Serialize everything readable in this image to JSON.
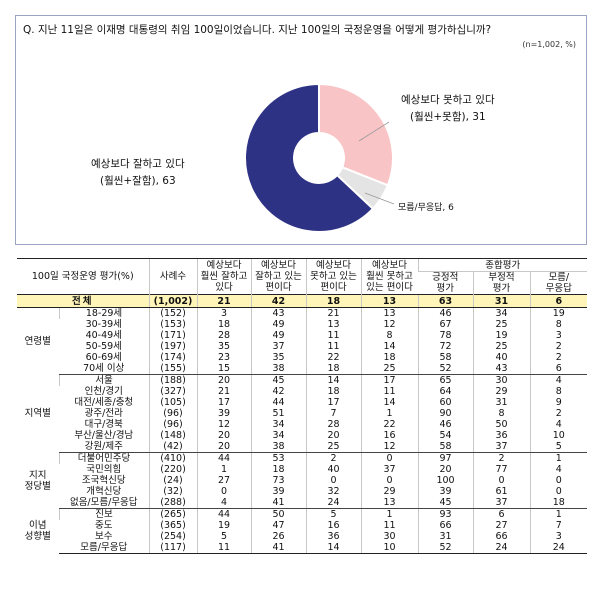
{
  "question": "Q. 지난 11일은 이재명 대통령의 취임 100일이었습니다. 지난 100일의 국정운영을 어떻게 평가하십니까?",
  "note": "(n=1,002, %)",
  "chart_data": {
    "type": "pie",
    "title": "",
    "slices": [
      {
        "label_line1": "예상보다 잘하고 있다",
        "label_line2": "(훨씬+잘함),",
        "value": 63,
        "color": "#2e3284"
      },
      {
        "label_line1": "예상보다 못하고 있다",
        "label_line2": "(훨씬+못함),",
        "value": 31,
        "color": "#f9c4c6"
      },
      {
        "label_line1": "모름/무응답,",
        "label_line2": "",
        "value": 6,
        "color": "#e4e4e4"
      }
    ]
  },
  "table": {
    "header": {
      "corner": "100일 국정운영 평가(%)",
      "sample": "사례수",
      "c1": [
        "예상보다",
        "훨씬 잘하고",
        "있다"
      ],
      "c2": [
        "예상보다",
        "잘하고 있는",
        "편이다"
      ],
      "c3": [
        "예상보다",
        "못하고 있는",
        "편이다"
      ],
      "c4": [
        "예상보다",
        "훨씬 못하고",
        "있는 편이다"
      ],
      "summary": "종합평가",
      "s1": [
        "긍정적",
        "평가"
      ],
      "s2": [
        "부정적",
        "평가"
      ],
      "s3": [
        "모름/",
        "무응답"
      ]
    },
    "total": {
      "label": "전체",
      "n": "(1,002)",
      "values": [
        "21",
        "42",
        "18",
        "13",
        "63",
        "31",
        "6"
      ]
    },
    "groups": [
      {
        "name": [
          "연령별"
        ],
        "rows": [
          {
            "cat": "18-29세",
            "n": "(152)",
            "values": [
              "3",
              "43",
              "21",
              "13",
              "46",
              "34",
              "19"
            ]
          },
          {
            "cat": "30-39세",
            "n": "(153)",
            "values": [
              "18",
              "49",
              "13",
              "12",
              "67",
              "25",
              "8"
            ]
          },
          {
            "cat": "40-49세",
            "n": "(171)",
            "values": [
              "28",
              "49",
              "11",
              "8",
              "78",
              "19",
              "3"
            ]
          },
          {
            "cat": "50-59세",
            "n": "(197)",
            "values": [
              "35",
              "37",
              "11",
              "14",
              "72",
              "25",
              "2"
            ]
          },
          {
            "cat": "60-69세",
            "n": "(174)",
            "values": [
              "23",
              "35",
              "22",
              "18",
              "58",
              "40",
              "2"
            ]
          },
          {
            "cat": "70세 이상",
            "n": "(155)",
            "values": [
              "15",
              "38",
              "18",
              "25",
              "52",
              "43",
              "6"
            ]
          }
        ]
      },
      {
        "name": [
          "지역별"
        ],
        "rows": [
          {
            "cat": "서울",
            "n": "(188)",
            "values": [
              "20",
              "45",
              "14",
              "17",
              "65",
              "30",
              "4"
            ]
          },
          {
            "cat": "인천/경기",
            "n": "(327)",
            "values": [
              "21",
              "42",
              "18",
              "11",
              "64",
              "29",
              "8"
            ]
          },
          {
            "cat": "대전/세종/충청",
            "n": "(105)",
            "values": [
              "17",
              "44",
              "17",
              "14",
              "60",
              "31",
              "9"
            ]
          },
          {
            "cat": "광주/전라",
            "n": "(96)",
            "values": [
              "39",
              "51",
              "7",
              "1",
              "90",
              "8",
              "2"
            ]
          },
          {
            "cat": "대구/경북",
            "n": "(96)",
            "values": [
              "12",
              "34",
              "28",
              "22",
              "46",
              "50",
              "4"
            ]
          },
          {
            "cat": "부산/울산/경남",
            "n": "(148)",
            "values": [
              "20",
              "34",
              "20",
              "16",
              "54",
              "36",
              "10"
            ]
          },
          {
            "cat": "강원/제주",
            "n": "(42)",
            "values": [
              "20",
              "38",
              "25",
              "12",
              "58",
              "37",
              "5"
            ]
          }
        ]
      },
      {
        "name": [
          "지지",
          "정당별"
        ],
        "rows": [
          {
            "cat": "더불어민주당",
            "n": "(410)",
            "values": [
              "44",
              "53",
              "2",
              "0",
              "97",
              "2",
              "1"
            ]
          },
          {
            "cat": "국민의힘",
            "n": "(220)",
            "values": [
              "1",
              "18",
              "40",
              "37",
              "20",
              "77",
              "4"
            ]
          },
          {
            "cat": "조국혁신당",
            "n": "(24)",
            "values": [
              "27",
              "73",
              "0",
              "0",
              "100",
              "0",
              "0"
            ]
          },
          {
            "cat": "개혁신당",
            "n": "(32)",
            "values": [
              "0",
              "39",
              "32",
              "29",
              "39",
              "61",
              "0"
            ]
          },
          {
            "cat": "없음/모름/무응답",
            "n": "(288)",
            "values": [
              "4",
              "41",
              "24",
              "13",
              "45",
              "37",
              "18"
            ]
          }
        ]
      },
      {
        "name": [
          "이념",
          "성향별"
        ],
        "rows": [
          {
            "cat": "진보",
            "n": "(265)",
            "values": [
              "44",
              "50",
              "5",
              "1",
              "93",
              "6",
              "1"
            ]
          },
          {
            "cat": "중도",
            "n": "(365)",
            "values": [
              "19",
              "47",
              "16",
              "11",
              "66",
              "27",
              "7"
            ]
          },
          {
            "cat": "보수",
            "n": "(254)",
            "values": [
              "5",
              "26",
              "36",
              "30",
              "31",
              "66",
              "3"
            ]
          },
          {
            "cat": "모름/무응답",
            "n": "(117)",
            "values": [
              "11",
              "41",
              "14",
              "10",
              "52",
              "24",
              "24"
            ]
          }
        ]
      }
    ]
  }
}
